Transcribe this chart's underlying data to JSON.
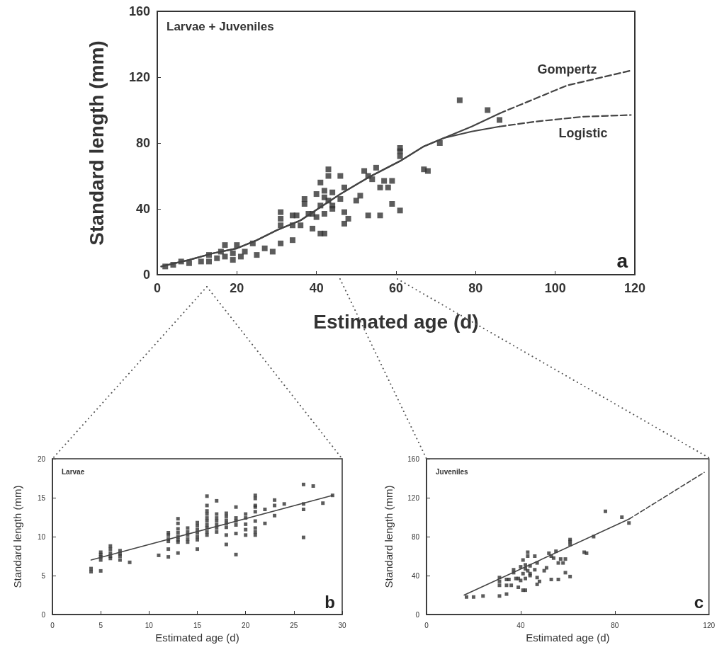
{
  "chart_data": [
    {
      "type": "scatter",
      "title": "Larvae + Juveniles",
      "xlabel": "Estimated age (d)",
      "ylabel": "Standard length (mm)",
      "xlim": [
        0,
        120
      ],
      "ylim": [
        0,
        160
      ],
      "xticks": [
        0,
        20,
        40,
        60,
        80,
        100,
        120
      ],
      "yticks": [
        0,
        40,
        80,
        120,
        160
      ],
      "marker": "square",
      "annotations": [
        "a"
      ],
      "series": [
        {
          "color": "#333333",
          "x": [
            2,
            4,
            6,
            8,
            11,
            13,
            13,
            15,
            16,
            17,
            19,
            19,
            21,
            22,
            25,
            27,
            29,
            17,
            20,
            24,
            31,
            31,
            31,
            31,
            34,
            34,
            34,
            35,
            36,
            37,
            37,
            38,
            39,
            39,
            40,
            40,
            41,
            41,
            41,
            42,
            42,
            42,
            42,
            43,
            43,
            43,
            44,
            44,
            44,
            46,
            46,
            47,
            47,
            47,
            48,
            50,
            51,
            52,
            53,
            53,
            54,
            55,
            56,
            56,
            57,
            58,
            59,
            59,
            61,
            61,
            61,
            61,
            67,
            68,
            71,
            76,
            83,
            86
          ],
          "values": [
            5,
            6,
            8,
            7,
            8,
            12,
            8,
            10,
            14,
            11,
            13,
            9,
            11,
            14,
            12,
            16,
            14,
            18,
            18,
            19,
            38,
            34,
            30,
            19,
            36,
            21,
            30,
            36,
            30,
            46,
            43,
            37,
            37,
            28,
            49,
            35,
            56,
            42,
            25,
            51,
            47,
            37,
            25,
            64,
            60,
            45,
            50,
            42,
            40,
            46,
            60,
            53,
            38,
            31,
            34,
            45,
            48,
            63,
            60,
            36,
            58,
            65,
            53,
            36,
            57,
            53,
            57,
            43,
            77,
            75,
            72,
            39,
            64,
            63,
            80,
            106,
            100,
            94
          ]
        },
        {
          "type": "line",
          "marker": "none",
          "line_style": "solid",
          "color": "#444444",
          "x": [
            1,
            8,
            14,
            20,
            25,
            30,
            36,
            41,
            46,
            53,
            61,
            67,
            72,
            79,
            86
          ],
          "values": [
            5,
            9,
            13,
            16,
            21,
            27,
            33,
            41,
            49,
            59,
            69,
            78,
            83,
            90,
            98
          ]
        },
        {
          "type": "line",
          "marker": "none",
          "line_style": "solid",
          "color": "#444444",
          "x": [
            1,
            8,
            14,
            20,
            25,
            30,
            36,
            41,
            46,
            53,
            61,
            67,
            72,
            79,
            86
          ],
          "values": [
            5,
            9,
            13,
            16,
            21,
            27,
            33,
            41,
            49,
            59,
            69,
            78,
            83,
            87,
            90
          ]
        },
        {
          "type": "line",
          "name": "Gompertz",
          "marker": "none",
          "line_style": "dashed",
          "color": "#444444",
          "x": [
            86,
            93,
            103,
            119
          ],
          "values": [
            98,
            105,
            115,
            124
          ]
        },
        {
          "type": "line",
          "name": "Logistic",
          "marker": "none",
          "line_style": "dashed",
          "color": "#444444",
          "x": [
            86,
            95,
            107,
            119
          ],
          "values": [
            90,
            93,
            96,
            97
          ]
        }
      ]
    },
    {
      "type": "scatter",
      "title": "Larvae",
      "xlabel": "Estimated age (d)",
      "ylabel": "Standard length (mm)",
      "xlim": [
        0,
        30
      ],
      "ylim": [
        0,
        20
      ],
      "xticks": [
        0,
        5,
        10,
        15,
        20,
        25,
        30
      ],
      "yticks": [
        0,
        5,
        10,
        15,
        20
      ],
      "marker": "square",
      "annotations": [
        "b"
      ],
      "series": [
        {
          "color": "#333333",
          "x": [
            4,
            4,
            5,
            5,
            5,
            5,
            5,
            6,
            6,
            6,
            6,
            6,
            7,
            7,
            7,
            7,
            8,
            11,
            12,
            12,
            12,
            12,
            12,
            12,
            13,
            13,
            13,
            13,
            13,
            13,
            13,
            13,
            14,
            14,
            14,
            14,
            14,
            15,
            15,
            15,
            15,
            15,
            15,
            15,
            16,
            16,
            16,
            16,
            16,
            16,
            16,
            16,
            16,
            16,
            17,
            17,
            17,
            17,
            17,
            17,
            17,
            18,
            18,
            18,
            18,
            18,
            18,
            18,
            19,
            19,
            19,
            19,
            19,
            19,
            20,
            20,
            20,
            20,
            20,
            21,
            21,
            21,
            21,
            21,
            21,
            21,
            21,
            21,
            22,
            22,
            23,
            23,
            23,
            24,
            26,
            26,
            26,
            26,
            27,
            28,
            29
          ],
          "values": [
            5.9,
            5.5,
            8.0,
            7.7,
            7.4,
            7.0,
            5.6,
            8.8,
            8.4,
            7.9,
            7.5,
            7.2,
            8.2,
            7.8,
            7.5,
            7.0,
            6.7,
            7.6,
            10.5,
            10.2,
            9.7,
            9.4,
            8.4,
            7.4,
            12.3,
            11.7,
            11.0,
            10.5,
            10.0,
            9.6,
            9.3,
            7.9,
            11.1,
            10.6,
            10.2,
            9.7,
            9.3,
            11.8,
            11.4,
            10.9,
            10.5,
            10.0,
            9.6,
            8.4,
            15.2,
            14.0,
            13.3,
            12.9,
            12.4,
            12.0,
            11.5,
            11.1,
            10.6,
            10.2,
            14.6,
            12.9,
            12.4,
            12.0,
            11.5,
            11.1,
            10.6,
            13.0,
            12.6,
            12.1,
            11.7,
            11.2,
            10.2,
            9.0,
            13.8,
            12.4,
            12.0,
            11.5,
            10.4,
            7.7,
            12.9,
            12.4,
            11.6,
            10.9,
            10.2,
            15.3,
            14.9,
            14.0,
            13.8,
            13.2,
            12.0,
            11.1,
            10.6,
            10.2,
            13.5,
            11.7,
            14.7,
            14.0,
            12.7,
            14.2,
            16.7,
            14.2,
            13.5,
            9.9,
            16.5,
            14.3,
            15.3
          ]
        },
        {
          "type": "line",
          "marker": "none",
          "line_style": "solid",
          "color": "#444444",
          "x": [
            4,
            29
          ],
          "values": [
            7.0,
            15.3
          ]
        }
      ]
    },
    {
      "type": "scatter",
      "title": "Juveniles",
      "xlabel": "Estimated age (d)",
      "ylabel": "Standard length (mm)",
      "xlim": [
        0,
        120
      ],
      "ylim": [
        0,
        160
      ],
      "xticks": [
        0,
        40,
        80,
        120
      ],
      "yticks": [
        0,
        40,
        80,
        120,
        160
      ],
      "marker": "square",
      "annotations": [
        "c"
      ],
      "series": [
        {
          "color": "#333333",
          "x": [
            17,
            20,
            24,
            31,
            31,
            31,
            31,
            34,
            34,
            34,
            35,
            36,
            37,
            37,
            38,
            39,
            39,
            40,
            40,
            41,
            41,
            41,
            42,
            42,
            42,
            42,
            43,
            43,
            43,
            44,
            44,
            44,
            46,
            46,
            47,
            47,
            47,
            48,
            50,
            51,
            52,
            53,
            53,
            54,
            55,
            56,
            56,
            57,
            58,
            59,
            59,
            61,
            61,
            61,
            61,
            67,
            68,
            71,
            76,
            83,
            86
          ],
          "values": [
            18,
            18,
            19,
            38,
            34,
            30,
            19,
            36,
            21,
            30,
            36,
            30,
            46,
            43,
            37,
            37,
            28,
            49,
            35,
            56,
            42,
            25,
            51,
            47,
            37,
            25,
            64,
            60,
            45,
            50,
            42,
            40,
            46,
            60,
            53,
            38,
            31,
            34,
            45,
            48,
            63,
            60,
            36,
            58,
            65,
            53,
            36,
            57,
            53,
            57,
            43,
            77,
            75,
            72,
            39,
            64,
            63,
            80,
            106,
            100,
            94
          ]
        },
        {
          "type": "line",
          "marker": "none",
          "line_style": "solid",
          "color": "#444444",
          "x": [
            16,
            86
          ],
          "values": [
            20,
            98
          ]
        },
        {
          "type": "line",
          "marker": "none",
          "line_style": "dashed",
          "color": "#444444",
          "x": [
            86,
            118
          ],
          "values": [
            98,
            146
          ]
        }
      ]
    }
  ]
}
